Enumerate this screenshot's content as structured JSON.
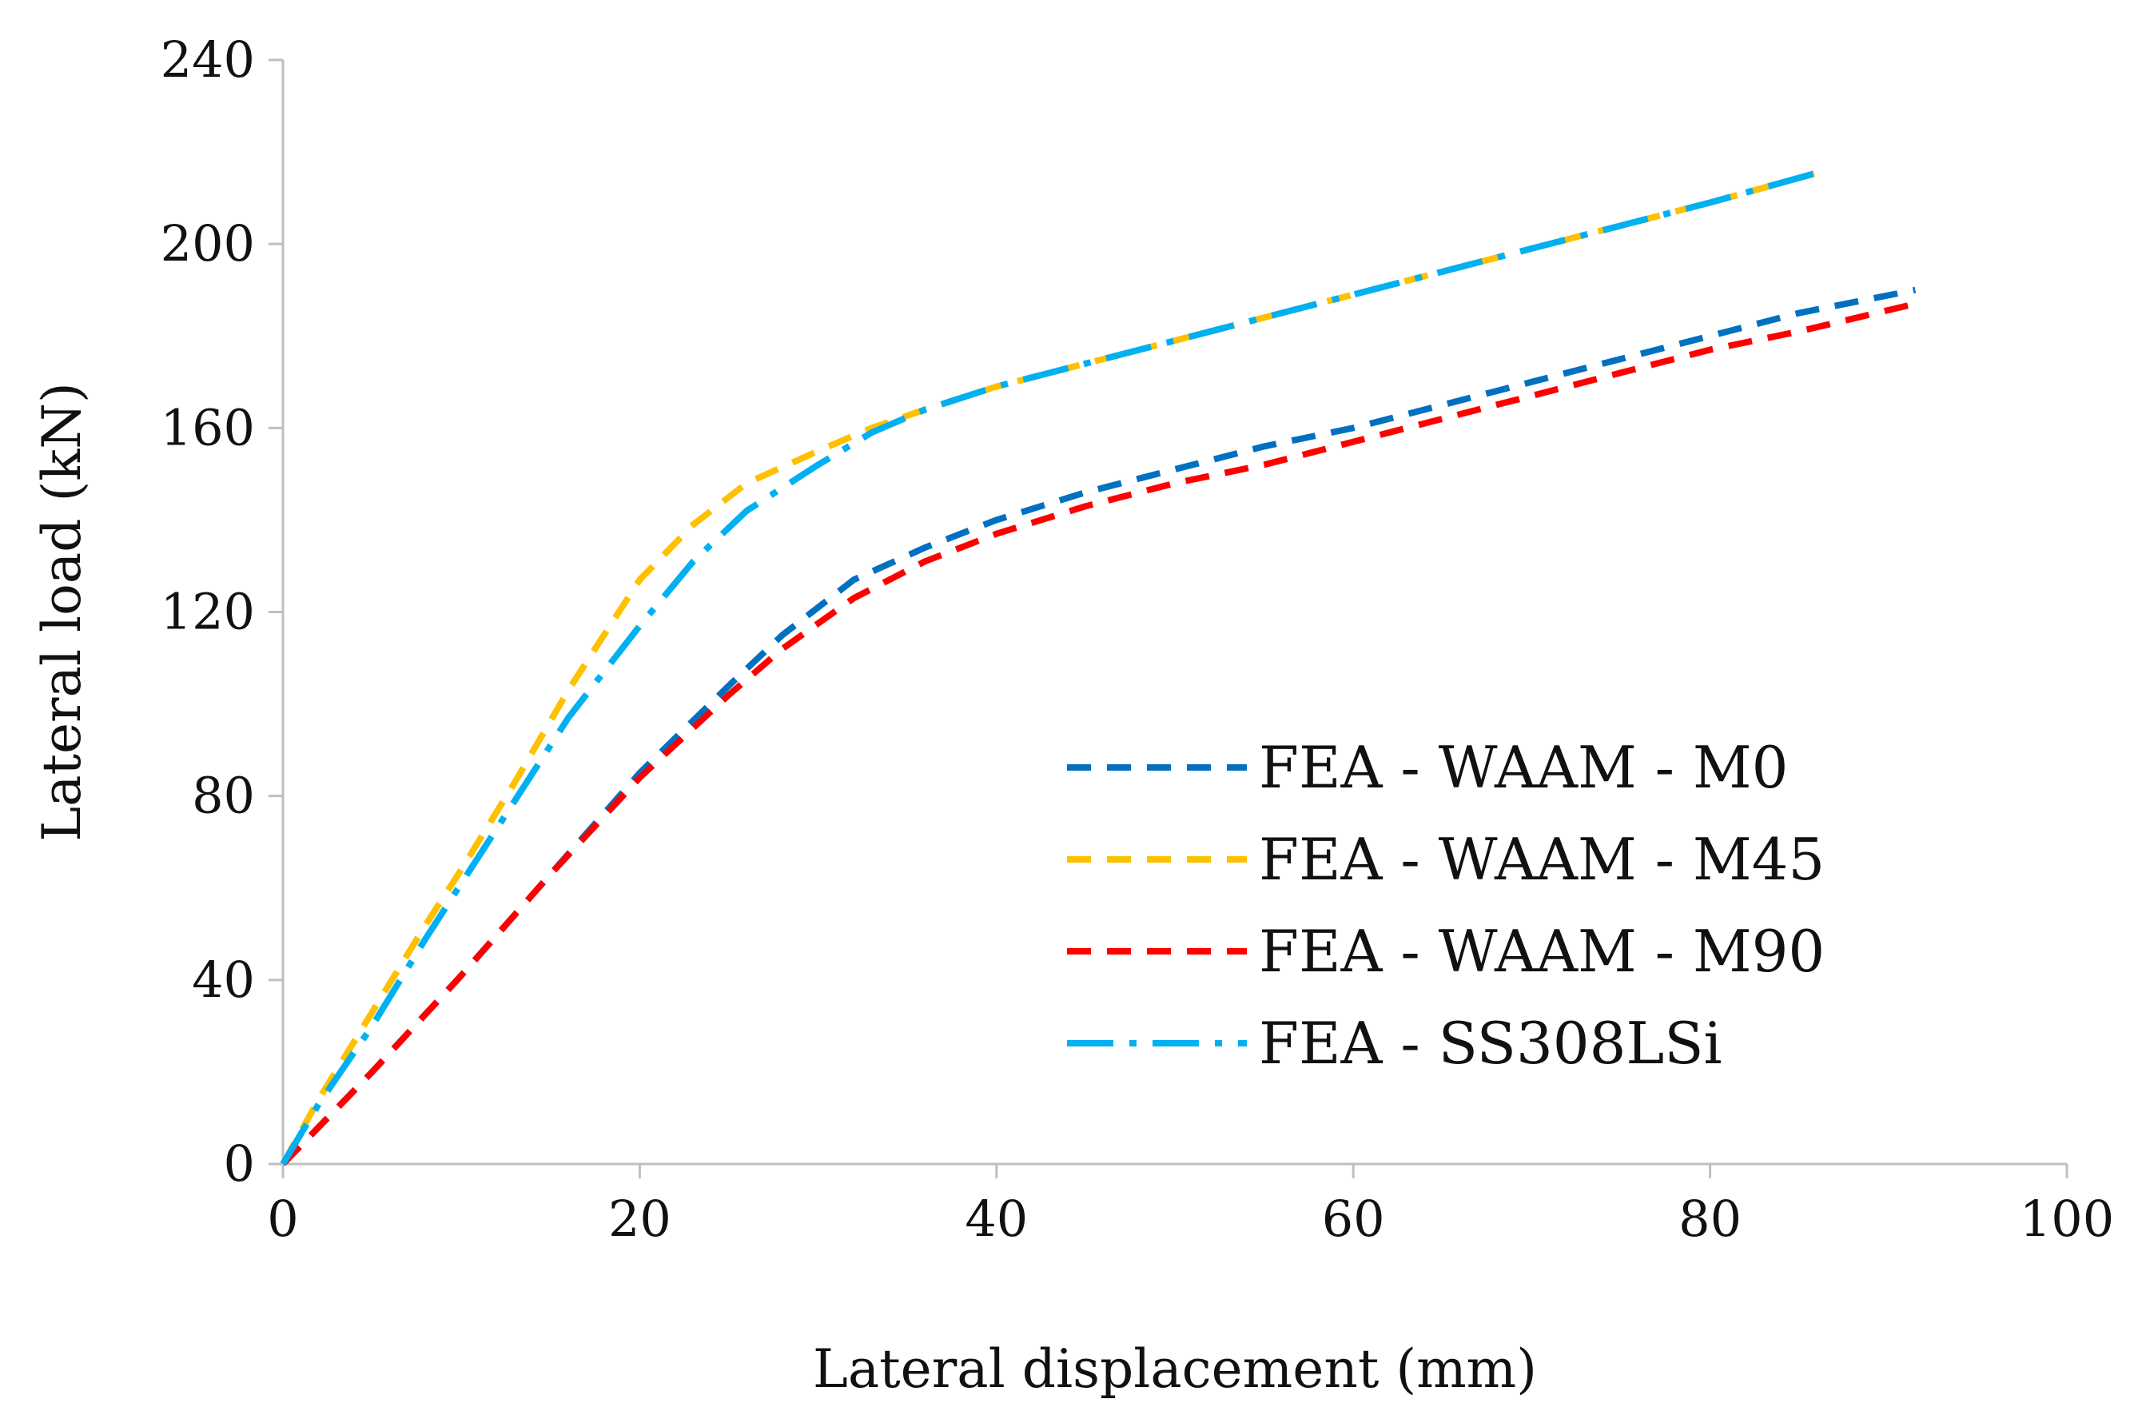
{
  "chart_data": {
    "type": "line",
    "title": "",
    "xlabel": "Lateral displacement (mm)",
    "ylabel": "Lateral load (kN)",
    "xlim": [
      0,
      100
    ],
    "ylim": [
      0,
      240
    ],
    "xticks": [
      0,
      20,
      40,
      60,
      80,
      100
    ],
    "yticks": [
      0,
      40,
      80,
      120,
      160,
      200,
      240
    ],
    "xtick_labels": [
      "0",
      "20",
      "40",
      "60",
      "80",
      "100"
    ],
    "ytick_labels": [
      "0",
      "40",
      "80",
      "120",
      "160",
      "200",
      "240"
    ],
    "grid": false,
    "legend_position": "lower-right inside plot",
    "series": [
      {
        "name": "FEA - WAAM - M0",
        "color": "#0070c0",
        "dash": "dash",
        "points": [
          [
            0,
            0
          ],
          [
            5,
            20
          ],
          [
            10,
            41
          ],
          [
            15,
            63
          ],
          [
            20,
            85
          ],
          [
            25,
            104
          ],
          [
            28,
            115
          ],
          [
            32,
            127
          ],
          [
            36,
            134
          ],
          [
            40,
            140
          ],
          [
            45,
            146
          ],
          [
            50,
            151
          ],
          [
            55,
            156
          ],
          [
            60,
            160
          ],
          [
            65,
            165
          ],
          [
            70,
            170
          ],
          [
            75,
            175
          ],
          [
            80,
            180
          ],
          [
            85,
            185
          ],
          [
            91.5,
            190
          ]
        ]
      },
      {
        "name": "FEA - WAAM - M45",
        "color": "#ffc000",
        "dash": "dash",
        "points": [
          [
            0,
            0
          ],
          [
            2,
            14
          ],
          [
            5,
            33
          ],
          [
            8,
            52
          ],
          [
            10,
            64
          ],
          [
            13,
            83
          ],
          [
            16,
            103
          ],
          [
            20,
            127
          ],
          [
            23,
            139
          ],
          [
            26,
            148
          ],
          [
            30,
            155
          ],
          [
            33,
            160
          ],
          [
            36,
            164
          ],
          [
            40,
            169
          ],
          [
            45,
            174
          ],
          [
            50,
            179
          ],
          [
            55,
            184
          ],
          [
            60,
            189
          ],
          [
            65,
            194
          ],
          [
            70,
            199
          ],
          [
            75,
            204
          ],
          [
            80,
            209
          ],
          [
            86.5,
            216
          ]
        ]
      },
      {
        "name": "FEA - WAAM - M90",
        "color": "#ff0000",
        "dash": "dash",
        "points": [
          [
            0,
            0
          ],
          [
            5,
            20
          ],
          [
            10,
            41
          ],
          [
            15,
            63
          ],
          [
            20,
            84
          ],
          [
            25,
            102
          ],
          [
            28,
            112
          ],
          [
            32,
            123
          ],
          [
            36,
            131
          ],
          [
            40,
            137
          ],
          [
            45,
            143
          ],
          [
            50,
            148
          ],
          [
            55,
            152
          ],
          [
            60,
            157
          ],
          [
            65,
            162
          ],
          [
            70,
            167
          ],
          [
            75,
            172
          ],
          [
            80,
            177
          ],
          [
            85,
            181
          ],
          [
            91.5,
            187
          ]
        ]
      },
      {
        "name": "FEA - SS308LSi",
        "color": "#00b0f0",
        "dash": "dashdot",
        "points": [
          [
            0,
            0
          ],
          [
            2,
            13
          ],
          [
            5,
            30
          ],
          [
            8,
            49
          ],
          [
            10,
            61
          ],
          [
            13,
            79
          ],
          [
            16,
            97
          ],
          [
            20,
            117
          ],
          [
            23,
            131
          ],
          [
            26,
            142
          ],
          [
            30,
            152
          ],
          [
            33,
            159
          ],
          [
            36,
            164
          ],
          [
            40,
            169
          ],
          [
            45,
            174
          ],
          [
            50,
            179
          ],
          [
            55,
            184
          ],
          [
            60,
            189
          ],
          [
            65,
            194
          ],
          [
            70,
            199
          ],
          [
            75,
            204
          ],
          [
            80,
            209
          ],
          [
            86.5,
            216
          ]
        ]
      }
    ]
  }
}
